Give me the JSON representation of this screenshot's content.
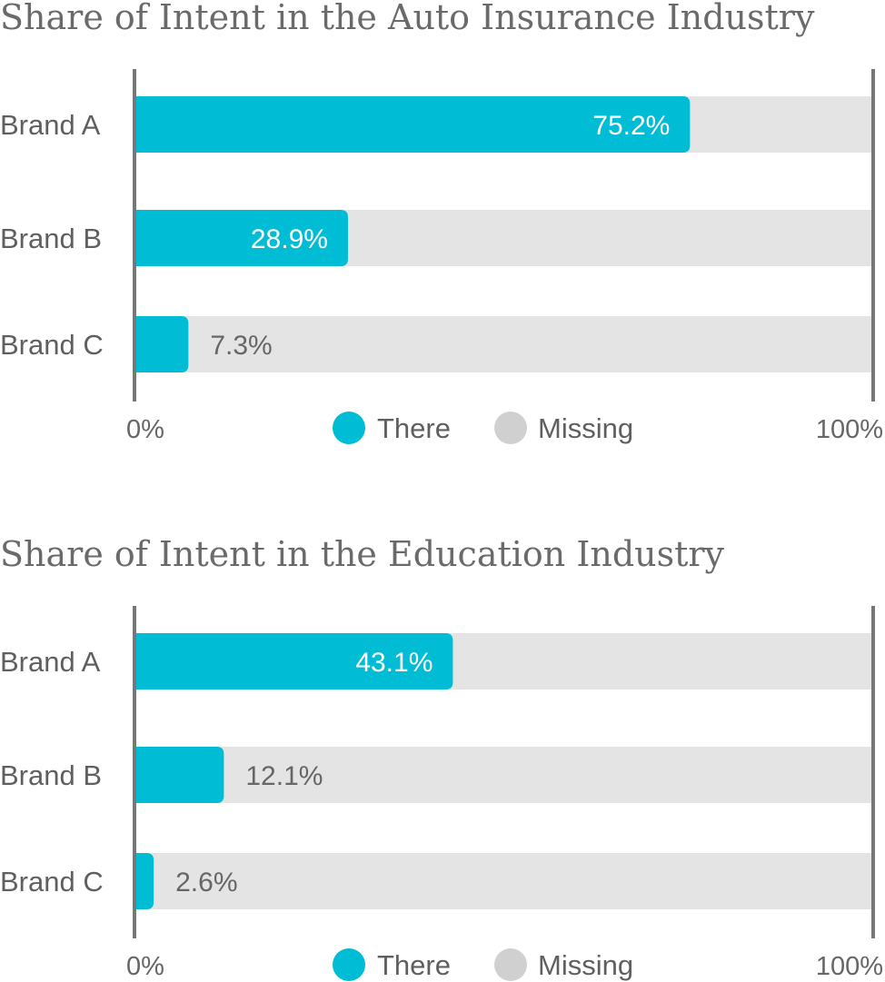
{
  "colors": {
    "there": "#00bcd4",
    "missing": "#e4e4e4",
    "axis": "#777777"
  },
  "chart_data": [
    {
      "type": "bar",
      "title": "Share of Intent in the Auto Insurance Industry",
      "categories": [
        "Brand A",
        "Brand B",
        "Brand C"
      ],
      "series": [
        {
          "name": "There",
          "values": [
            75.2,
            28.9,
            7.3
          ]
        },
        {
          "name": "Missing",
          "values": [
            24.8,
            71.1,
            92.7
          ]
        }
      ],
      "data_labels": [
        "75.2%",
        "28.9%",
        "7.3%"
      ],
      "xlim": [
        0,
        100
      ],
      "tick_labels": {
        "min": "0%",
        "max": "100%"
      },
      "legend": {
        "position": "bottom-center",
        "labels": [
          "There",
          "Missing"
        ]
      }
    },
    {
      "type": "bar",
      "title": "Share of Intent in the Education Industry",
      "categories": [
        "Brand A",
        "Brand B",
        "Brand C"
      ],
      "series": [
        {
          "name": "There",
          "values": [
            43.1,
            12.1,
            2.6
          ]
        },
        {
          "name": "Missing",
          "values": [
            56.9,
            87.9,
            97.4
          ]
        }
      ],
      "data_labels": [
        "43.1%",
        "12.1%",
        "2.6%"
      ],
      "xlim": [
        0,
        100
      ],
      "tick_labels": {
        "min": "0%",
        "max": "100%"
      },
      "legend": {
        "position": "bottom-center",
        "labels": [
          "There",
          "Missing"
        ]
      }
    }
  ]
}
